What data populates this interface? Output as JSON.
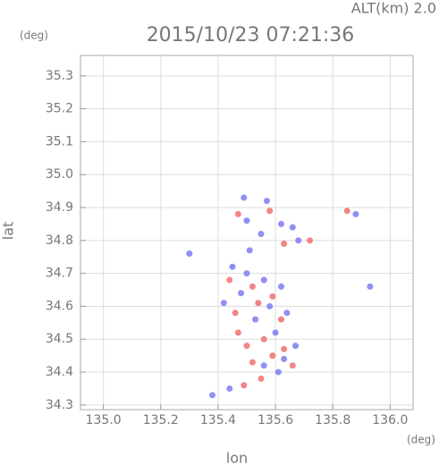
{
  "chart_data": {
    "type": "scatter",
    "title": "2015/10/23 07:21:36",
    "annotation": "ALT(km) 2.0",
    "y_unit": "(deg)",
    "x_unit": "(deg)",
    "x_label": "lon",
    "y_label": "lat",
    "xlim": [
      134.92,
      136.08
    ],
    "ylim": [
      34.286,
      35.362
    ],
    "xticks": [
      {
        "value": 135.0,
        "label": "135.0"
      },
      135.2,
      135.4,
      135.6,
      135.8,
      {
        "value": 136.0,
        "label": "136.0"
      }
    ],
    "yticks": [
      34.3,
      34.4,
      34.5,
      34.6,
      34.7,
      34.8,
      34.9,
      {
        "value": 35.0,
        "label": "35.0"
      },
      35.1,
      35.2,
      35.3
    ],
    "grid": true,
    "series": [
      {
        "color": "#7b7bf2",
        "x": [
          135.49,
          135.57,
          135.5,
          135.62,
          135.55,
          135.66,
          135.68,
          135.51,
          135.88,
          135.93,
          135.45,
          135.5,
          135.56,
          135.62,
          135.48,
          135.58,
          135.53,
          135.64,
          135.6,
          135.67,
          135.63,
          135.56,
          135.61,
          135.38,
          135.44,
          135.3,
          135.42
        ],
        "values": [
          34.93,
          34.92,
          34.86,
          34.85,
          34.82,
          34.84,
          34.8,
          34.77,
          34.88,
          34.66,
          34.72,
          34.7,
          34.68,
          34.66,
          34.64,
          34.6,
          34.56,
          34.58,
          34.52,
          34.48,
          34.44,
          34.42,
          34.4,
          34.33,
          34.35,
          34.76,
          34.61
        ]
      },
      {
        "color": "#f07070",
        "x": [
          135.47,
          135.58,
          135.63,
          135.72,
          135.85,
          135.44,
          135.52,
          135.59,
          135.46,
          135.54,
          135.62,
          135.5,
          135.56,
          135.63,
          135.52,
          135.59,
          135.55,
          135.49,
          135.66,
          135.47
        ],
        "values": [
          34.88,
          34.89,
          34.79,
          34.8,
          34.89,
          34.68,
          34.66,
          34.63,
          34.58,
          34.61,
          34.56,
          34.48,
          34.5,
          34.47,
          34.43,
          34.45,
          34.38,
          34.36,
          34.42,
          34.52
        ]
      }
    ]
  }
}
